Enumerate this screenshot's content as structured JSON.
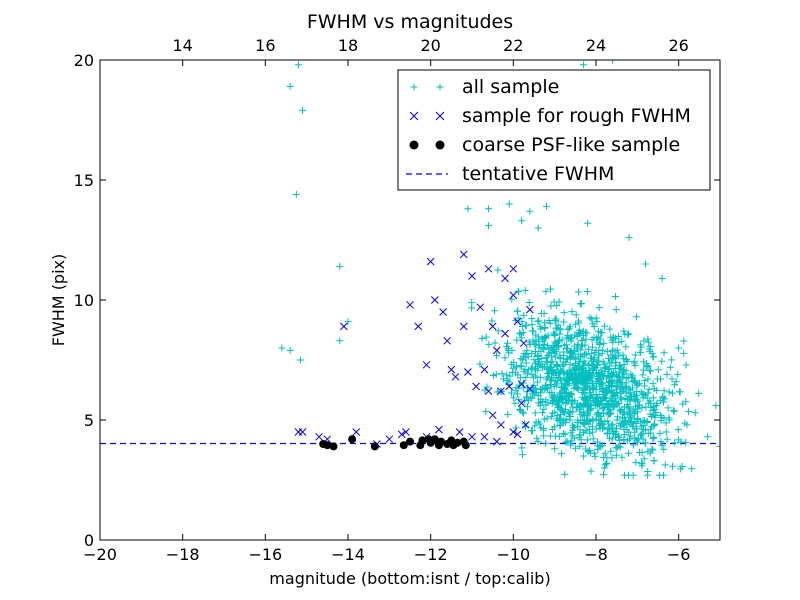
{
  "chart_data": {
    "type": "scatter",
    "title": "FWHM vs magnitudes",
    "xlabel": "magnitude (bottom:isnt / top:calib)",
    "ylabel": "FWHM (pix)",
    "xlim": [
      -20,
      -5
    ],
    "ylim": [
      0,
      20
    ],
    "x_ticks": [
      -20,
      -18,
      -16,
      -14,
      -12,
      -10,
      -8,
      -6
    ],
    "x_tick_labels": [
      "−20",
      "−18",
      "−16",
      "−14",
      "−12",
      "−10",
      "−8",
      "−6"
    ],
    "y_ticks": [
      0,
      5,
      10,
      15,
      20
    ],
    "y_tick_labels": [
      "0",
      "5",
      "10",
      "15",
      "20"
    ],
    "top_axis": {
      "offset": 32,
      "ticks": [
        14,
        16,
        18,
        20,
        22,
        24,
        26
      ],
      "tick_labels": [
        "14",
        "16",
        "18",
        "20",
        "22",
        "24",
        "26"
      ]
    },
    "legend_position": "upper-right",
    "grid": false,
    "colors": {
      "all": "#00bfbf",
      "rough": "#0000ff",
      "coarse": "#000000",
      "tentative": "#0000ff"
    },
    "tentative_fwhm": 4.02,
    "series": [
      {
        "name": "all sample",
        "marker": "plus",
        "points": [
          [
            -15.4,
            18.9
          ],
          [
            -15.2,
            19.8
          ],
          [
            -15.1,
            17.9
          ],
          [
            -15.25,
            14.4
          ],
          [
            -15.15,
            7.5
          ],
          [
            -15.6,
            8.0
          ],
          [
            -15.4,
            7.9
          ],
          [
            -14.2,
            11.4
          ],
          [
            -14.2,
            8.3
          ],
          [
            -14.0,
            9.1
          ],
          [
            -10.6,
            13.8
          ],
          [
            -11.1,
            13.8
          ],
          [
            -10.1,
            14.0
          ],
          [
            -9.6,
            13.7
          ],
          [
            -9.2,
            13.9
          ],
          [
            -8.5,
            14.9
          ],
          [
            -7.6,
            14.9
          ],
          [
            -7.6,
            20.0
          ],
          [
            -8.3,
            19.8
          ],
          [
            -8.6,
            15.1
          ],
          [
            -9.8,
            13.3
          ],
          [
            -9.4,
            13.0
          ],
          [
            -8.2,
            13.2
          ],
          [
            -7.2,
            12.6
          ],
          [
            -6.8,
            11.5
          ],
          [
            -6.4,
            10.9
          ],
          [
            -6.0,
            8.0
          ],
          [
            -6.2,
            7.2
          ],
          [
            -5.1,
            5.6
          ],
          [
            -5.6,
            5.3
          ],
          [
            -5.8,
            4.8
          ],
          [
            -5.3,
            4.3
          ],
          [
            -5.0,
            3.9
          ],
          [
            -6.3,
            4.5
          ],
          [
            -6.6,
            3.3
          ],
          [
            -7.1,
            2.7
          ],
          [
            -6.9,
            3.2
          ],
          [
            -7.8,
            3.0
          ],
          [
            -8.3,
            3.5
          ],
          [
            -9.0,
            3.8
          ],
          [
            -9.4,
            4.1
          ],
          [
            -10.6,
            13.1
          ]
        ]
      },
      {
        "name": "sample for rough FWHM",
        "marker": "x",
        "points": [
          [
            -15.2,
            4.5
          ],
          [
            -15.1,
            4.5
          ],
          [
            -14.7,
            4.3
          ],
          [
            -14.5,
            4.2
          ],
          [
            -14.1,
            8.9
          ],
          [
            -13.8,
            4.5
          ],
          [
            -13.3,
            4.0
          ],
          [
            -13.0,
            4.2
          ],
          [
            -12.6,
            4.5
          ],
          [
            -12.5,
            9.8
          ],
          [
            -12.3,
            8.9
          ],
          [
            -12.1,
            4.3
          ],
          [
            -12.0,
            11.6
          ],
          [
            -12.1,
            7.3
          ],
          [
            -11.9,
            10.0
          ],
          [
            -11.8,
            4.6
          ],
          [
            -11.7,
            9.5
          ],
          [
            -11.6,
            8.3
          ],
          [
            -11.5,
            7.1
          ],
          [
            -11.4,
            6.8
          ],
          [
            -11.2,
            11.9
          ],
          [
            -11.2,
            8.9
          ],
          [
            -11.1,
            7.0
          ],
          [
            -11.0,
            11.0
          ],
          [
            -10.9,
            6.4
          ],
          [
            -10.8,
            9.7
          ],
          [
            -10.7,
            7.1
          ],
          [
            -10.7,
            4.3
          ],
          [
            -10.6,
            11.3
          ],
          [
            -10.5,
            8.9
          ],
          [
            -10.5,
            5.2
          ],
          [
            -10.4,
            7.9
          ],
          [
            -10.3,
            6.2
          ],
          [
            -10.2,
            10.9
          ],
          [
            -10.1,
            6.4
          ],
          [
            -10.0,
            11.3
          ],
          [
            -10.0,
            10.2
          ],
          [
            -10.0,
            4.5
          ],
          [
            -9.9,
            9.1
          ],
          [
            -9.8,
            6.5
          ],
          [
            -9.8,
            5.7
          ],
          [
            -9.7,
            4.8
          ],
          [
            -9.6,
            6.3
          ],
          [
            -9.6,
            9.6
          ],
          [
            -10.4,
            4.1
          ],
          [
            -10.6,
            6.2
          ],
          [
            -10.2,
            8.6
          ],
          [
            -10.3,
            4.8
          ],
          [
            -9.9,
            4.4
          ],
          [
            -11.3,
            4.5
          ],
          [
            -11.0,
            4.3
          ],
          [
            -12.7,
            4.4
          ],
          [
            -9.75,
            8.2
          ]
        ]
      },
      {
        "name": "coarse PSF-like sample",
        "marker": "dot",
        "points": [
          [
            -14.6,
            4.0
          ],
          [
            -14.5,
            3.95
          ],
          [
            -14.35,
            3.9
          ],
          [
            -13.9,
            4.2
          ],
          [
            -13.35,
            3.9
          ],
          [
            -12.65,
            3.95
          ],
          [
            -12.5,
            4.1
          ],
          [
            -12.25,
            3.95
          ],
          [
            -12.2,
            4.15
          ],
          [
            -12.05,
            4.2
          ],
          [
            -12.0,
            4.05
          ],
          [
            -11.9,
            4.2
          ],
          [
            -11.8,
            3.95
          ],
          [
            -11.75,
            4.1
          ],
          [
            -11.6,
            4.0
          ],
          [
            -11.5,
            4.15
          ],
          [
            -11.45,
            3.95
          ],
          [
            -11.35,
            4.05
          ],
          [
            -11.2,
            4.1
          ],
          [
            -11.15,
            3.95
          ]
        ]
      },
      {
        "name": "tentative FWHM",
        "marker": "dashed-line"
      }
    ]
  }
}
